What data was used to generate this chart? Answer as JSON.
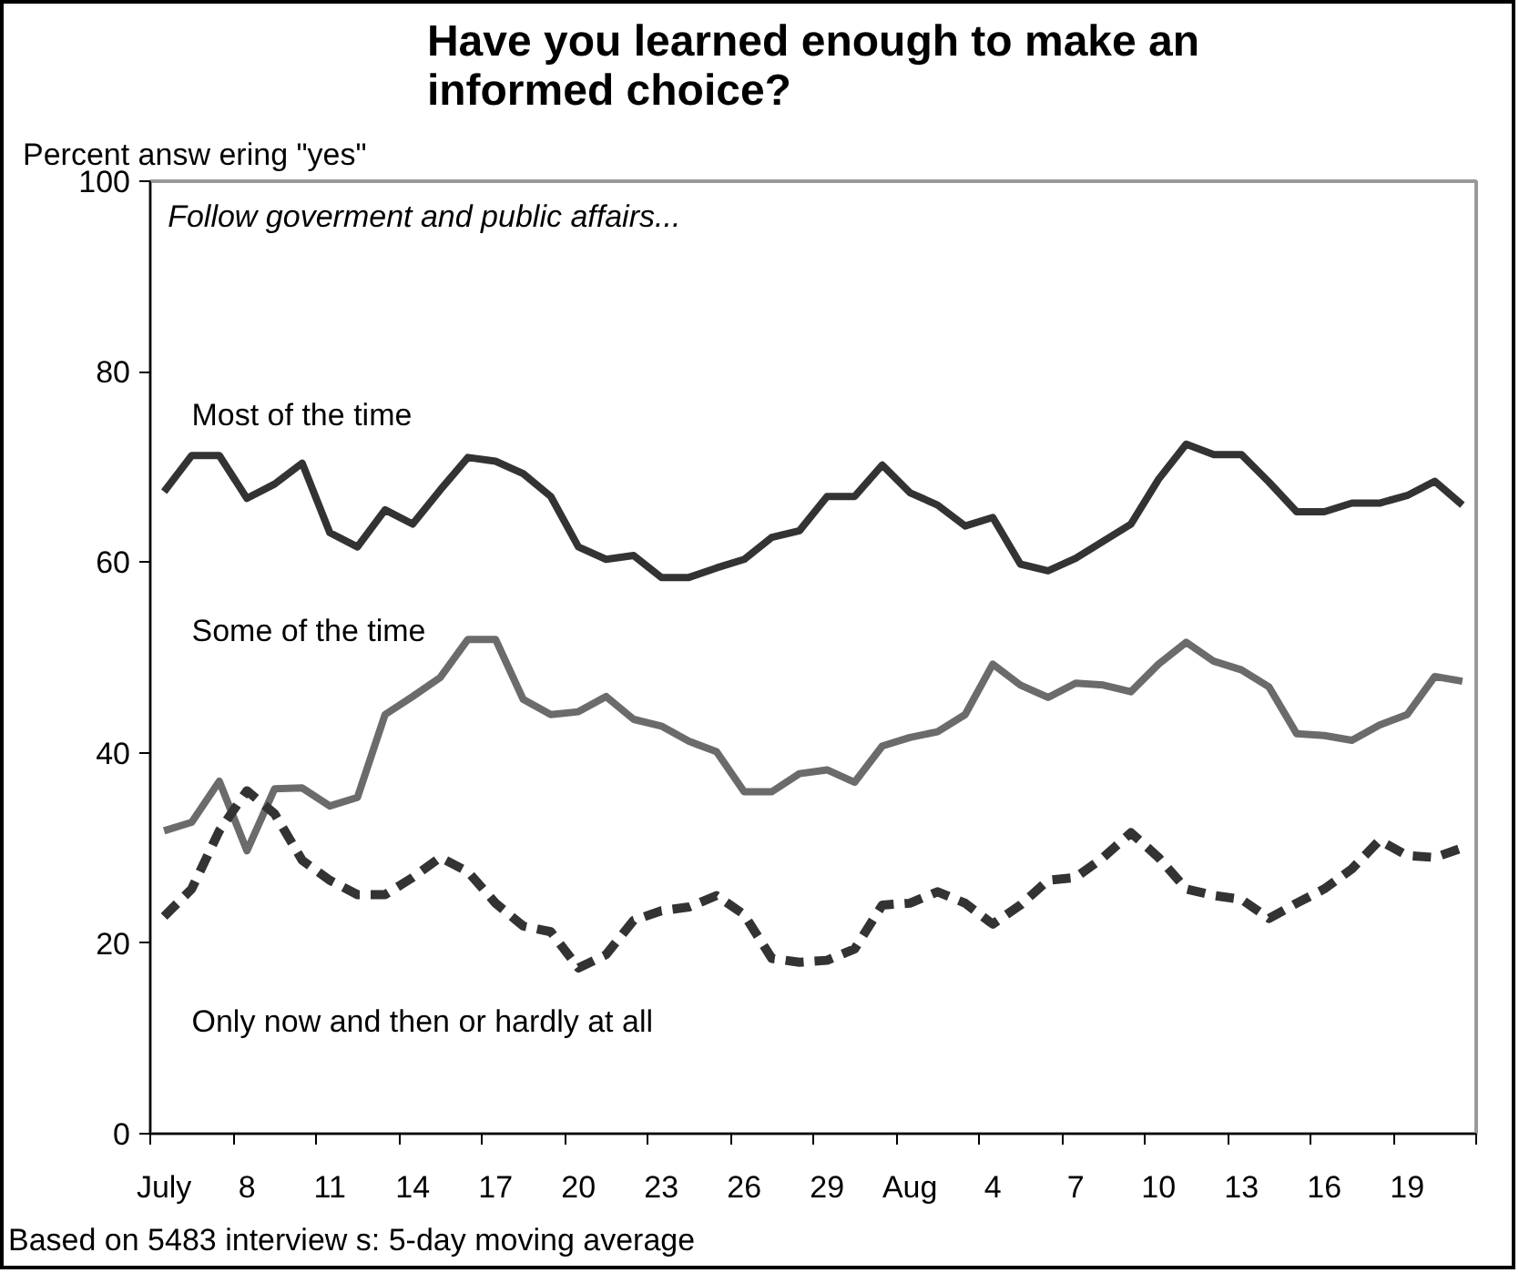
{
  "chart_data": {
    "type": "line",
    "title": "Have you learned enough to make an\ninformed choice?",
    "ylabel": "Percent answ ering \"yes\"",
    "categories": [
      "July",
      null,
      null,
      "8",
      null,
      null,
      "11",
      null,
      null,
      "14",
      null,
      null,
      "17",
      null,
      null,
      "20",
      null,
      null,
      "23",
      null,
      null,
      "26",
      null,
      null,
      "29",
      null,
      null,
      "Aug",
      null,
      null,
      "4",
      null,
      null,
      "7",
      null,
      null,
      "10",
      null,
      null,
      "13",
      null,
      null,
      "16",
      null,
      null,
      "19",
      null,
      null
    ],
    "series": [
      {
        "name": "Most of the time",
        "color": "#333333",
        "line_style": "solid",
        "values": [
          67.4,
          71.2,
          71.2,
          66.7,
          68.2,
          70.4,
          63.1,
          61.6,
          65.5,
          64,
          67.6,
          71,
          70.6,
          69.3,
          66.9,
          61.6,
          60.3,
          60.7,
          58.4,
          58.4,
          59.4,
          60.3,
          62.6,
          63.3,
          66.9,
          66.9,
          70.2,
          67.3,
          66,
          63.8,
          64.7,
          59.8,
          59.1,
          60.4,
          62.2,
          64,
          68.7,
          72.4,
          71.3,
          71.3,
          68.4,
          65.3,
          65.3,
          66.2,
          66.2,
          67,
          68.5,
          66
        ]
      },
      {
        "name": "Some of the time",
        "color": "#6b6b6b",
        "line_style": "solid",
        "values": [
          31.8,
          32.7,
          37,
          29.7,
          36.2,
          36.3,
          34.4,
          35.3,
          44,
          45.9,
          47.9,
          51.9,
          51.9,
          45.6,
          44,
          44.3,
          45.9,
          43.5,
          42.8,
          41.2,
          40.1,
          35.9,
          35.9,
          37.8,
          38.2,
          36.9,
          40.7,
          41.6,
          42.2,
          44,
          49.3,
          47.1,
          45.8,
          47.3,
          47.1,
          46.4,
          49.3,
          51.6,
          49.6,
          48.7,
          46.9,
          42,
          41.8,
          41.3,
          42.9,
          44,
          48,
          47.5
        ]
      },
      {
        "name": "Only now  and then or hardly at all",
        "color": "#333333",
        "line_style": "dashed",
        "values": [
          22.8,
          25.7,
          31.8,
          36,
          33.6,
          28.7,
          26.6,
          25.1,
          25.1,
          26.9,
          29,
          27.5,
          24.2,
          21.8,
          21.2,
          17.4,
          18.8,
          22.4,
          23.4,
          23.8,
          25,
          23,
          18.4,
          18,
          18.2,
          19.4,
          24,
          24.2,
          25.4,
          24.2,
          22,
          24,
          26.6,
          26.9,
          29,
          31.6,
          29,
          25.7,
          25,
          24.6,
          22.6,
          24.2,
          25.7,
          27.8,
          30.8,
          29.2,
          29,
          30
        ]
      }
    ],
    "ylim": [
      0,
      100
    ],
    "yticks": [
      0,
      20,
      40,
      60,
      80,
      100
    ],
    "annotations": [
      "Follow goverment and public affairs...",
      "Based on 5483 interview s: 5-day moving average"
    ]
  }
}
